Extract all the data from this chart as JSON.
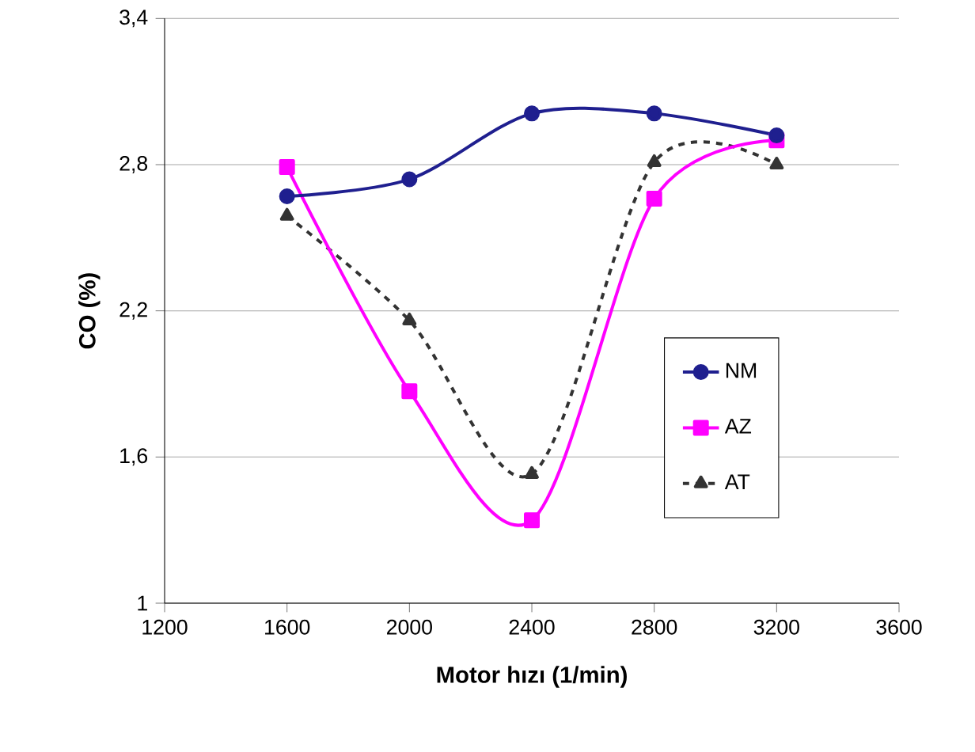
{
  "chart_data": {
    "type": "line",
    "xlabel": "Motor hızı (1/min)",
    "ylabel": "CO  (%)",
    "x": [
      1600,
      2000,
      2400,
      2800,
      3200
    ],
    "series": [
      {
        "name": "NM",
        "color": "#1f1f8f",
        "values": [
          2.67,
          2.74,
          3.01,
          3.01,
          2.92
        ],
        "marker": "circle",
        "line_style": "solid"
      },
      {
        "name": "AZ",
        "color": "#ff00ff",
        "values": [
          2.79,
          1.87,
          1.34,
          2.66,
          2.9
        ],
        "marker": "square",
        "line_style": "solid"
      },
      {
        "name": "AT",
        "color": "#333333",
        "values": [
          2.59,
          2.16,
          1.53,
          2.81,
          2.8
        ],
        "marker": "triangle",
        "line_style": "dashed"
      }
    ],
    "xlim": [
      1200,
      3600
    ],
    "xticks": [
      1200,
      1600,
      2000,
      2400,
      2800,
      3200,
      3600
    ],
    "ylim": [
      1,
      3.4
    ],
    "yticks": [
      1,
      {
        "value": 1.6,
        "label": "1,6"
      },
      {
        "value": 2.2,
        "label": "2,2"
      },
      {
        "value": 2.8,
        "label": "2,8"
      },
      {
        "value": 3.4,
        "label": "3,4"
      }
    ],
    "grid": "y",
    "legend": "right"
  }
}
